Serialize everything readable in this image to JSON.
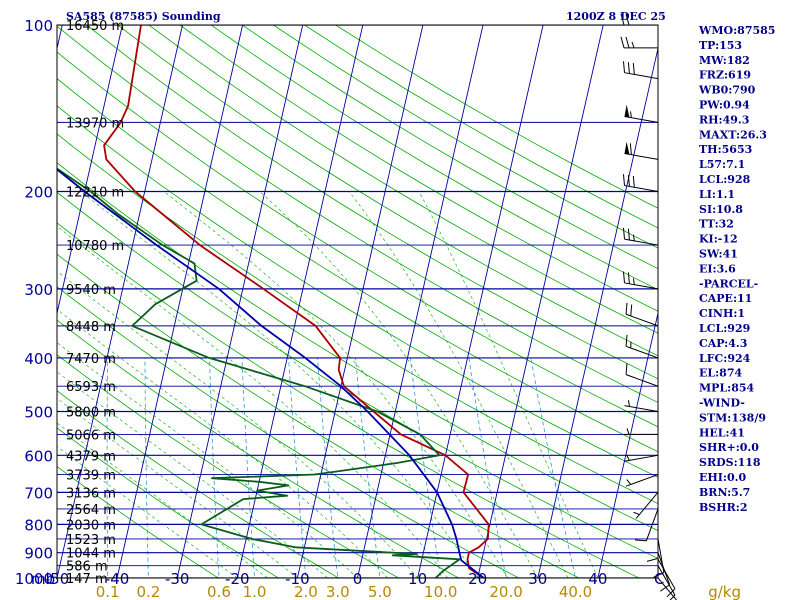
{
  "header": {
    "station_title": "SA585 (87585) Sounding",
    "time_label": "1200Z  8 DEC 25"
  },
  "units": {
    "pressure": "mb",
    "mixing_ratio": "g/kg"
  },
  "chart_data": {
    "type": "line",
    "subtype": "skew-T log-P",
    "pressure_axis": {
      "ticks": [
        100,
        200,
        300,
        400,
        500,
        600,
        700,
        800,
        900,
        1000
      ],
      "scale": "log",
      "ylim": [
        1000,
        100
      ]
    },
    "temperature_axis": {
      "ticks": [
        -50,
        -40,
        -30,
        -20,
        -10,
        0,
        10,
        20,
        30,
        40
      ],
      "labels": [
        "-50",
        "-40",
        "-30",
        "-20",
        "-10",
        "0",
        "10",
        "20",
        "30",
        "40"
      ],
      "trailing_label": "C",
      "xlim": [
        -50,
        50
      ]
    },
    "mixing_ratio_labels": [
      "0.1",
      "0.2",
      "0.6",
      "1.0",
      "2.0",
      "3.0",
      "5.0",
      "10.0",
      "20.0",
      "40.0"
    ],
    "mixing_ratio_values": [
      0.1,
      0.2,
      0.6,
      1.0,
      2.0,
      3.0,
      5.0,
      10.0,
      20.0,
      40.0
    ],
    "height_labels": [
      {
        "p": 100,
        "label": "16450 m"
      },
      {
        "p": 150,
        "label": "13970 m"
      },
      {
        "p": 200,
        "label": "12210 m"
      },
      {
        "p": 250,
        "label": "10780 m"
      },
      {
        "p": 300,
        "label": "9540 m"
      },
      {
        "p": 350,
        "label": "8448 m"
      },
      {
        "p": 400,
        "label": "7470 m"
      },
      {
        "p": 450,
        "label": "6593 m"
      },
      {
        "p": 500,
        "label": "5800 m"
      },
      {
        "p": 550,
        "label": "5066 m"
      },
      {
        "p": 600,
        "label": "4379 m"
      },
      {
        "p": 650,
        "label": "3739 m"
      },
      {
        "p": 700,
        "label": "3136 m"
      },
      {
        "p": 750,
        "label": "2564 m"
      },
      {
        "p": 800,
        "label": "2030 m"
      },
      {
        "p": 850,
        "label": "1523 m"
      },
      {
        "p": 900,
        "label": "1044 m"
      },
      {
        "p": 950,
        "label": "586 m"
      },
      {
        "p": 1000,
        "label": "147 m"
      }
    ],
    "series": [
      {
        "color": "#aa0000",
        "points": [
          [
            1000,
            21.0
          ],
          [
            960,
            18.2
          ],
          [
            925,
            17.6
          ],
          [
            900,
            17.6
          ],
          [
            880,
            19.0
          ],
          [
            850,
            20.2
          ],
          [
            800,
            19.8
          ],
          [
            700,
            14.4
          ],
          [
            650,
            14.5
          ],
          [
            600,
            10.0
          ],
          [
            550,
            1.8
          ],
          [
            500,
            -3.6
          ],
          [
            450,
            -9.5
          ],
          [
            420,
            -11.0
          ],
          [
            400,
            -11.2
          ],
          [
            350,
            -16.5
          ],
          [
            300,
            -26.6
          ],
          [
            250,
            -38.8
          ],
          [
            200,
            -51.6
          ],
          [
            175,
            -57.6
          ],
          [
            165,
            -58.5
          ],
          [
            150,
            -56.6
          ],
          [
            140,
            -56.0
          ],
          [
            100,
            -56.9
          ]
        ]
      },
      {
        "color": "#0b5d1e",
        "points": [
          [
            1000,
            13.0
          ],
          [
            970,
            14.0
          ],
          [
            925,
            16.3
          ],
          [
            910,
            5.0
          ],
          [
            905,
            9.0
          ],
          [
            880,
            -11.5
          ],
          [
            850,
            -19.0
          ],
          [
            800,
            -28.0
          ],
          [
            720,
            -22.0
          ],
          [
            710,
            -14.8
          ],
          [
            695,
            -20.0
          ],
          [
            680,
            -15.0
          ],
          [
            670,
            -20.0
          ],
          [
            660,
            -28.0
          ],
          [
            650,
            -11.0
          ],
          [
            620,
            2.0
          ],
          [
            600,
            9.0
          ],
          [
            550,
            5.0
          ],
          [
            500,
            -3.0
          ],
          [
            450,
            -16.0
          ],
          [
            400,
            -33.0
          ],
          [
            350,
            -47.0
          ],
          [
            320,
            -44.0
          ],
          [
            290,
            -38.0
          ],
          [
            270,
            -39.0
          ],
          [
            250,
            -45.0
          ],
          [
            220,
            -53.5
          ],
          [
            200,
            -59.0
          ],
          [
            170,
            -70.0
          ],
          [
            160,
            -72.0
          ],
          [
            150,
            -73.5
          ],
          [
            140,
            -74.0
          ],
          [
            130,
            -82.0
          ],
          [
            110,
            -87.0
          ],
          [
            100,
            -88.0
          ]
        ]
      },
      {
        "color": "#0000aa",
        "points": [
          [
            1000,
            21.0
          ],
          [
            929,
            16.6
          ],
          [
            900,
            16.0
          ],
          [
            850,
            15.0
          ],
          [
            800,
            13.7
          ],
          [
            700,
            10.0
          ],
          [
            600,
            4.0
          ],
          [
            500,
            -4.6
          ],
          [
            450,
            -10.0
          ],
          [
            400,
            -17.0
          ],
          [
            350,
            -25.5
          ],
          [
            300,
            -34.0
          ],
          [
            250,
            -46.0
          ],
          [
            200,
            -60.0
          ],
          [
            150,
            -77.0
          ],
          [
            120,
            -86.0
          ]
        ]
      }
    ],
    "wind_barbs": [
      {
        "p": 1000,
        "dir": 140,
        "spd": 5
      },
      {
        "p": 950,
        "dir": 150,
        "spd": 10
      },
      {
        "p": 925,
        "dir": 150,
        "spd": 10
      },
      {
        "p": 900,
        "dir": 160,
        "spd": 10
      },
      {
        "p": 850,
        "dir": 170,
        "spd": 10
      },
      {
        "p": 800,
        "dir": 180,
        "spd": 10
      },
      {
        "p": 750,
        "dir": 200,
        "spd": 10
      },
      {
        "p": 700,
        "dir": 220,
        "spd": 5
      },
      {
        "p": 650,
        "dir": 250,
        "spd": 5
      },
      {
        "p": 600,
        "dir": 260,
        "spd": 5
      },
      {
        "p": 550,
        "dir": 270,
        "spd": 5
      },
      {
        "p": 500,
        "dir": 280,
        "spd": 5
      },
      {
        "p": 450,
        "dir": 290,
        "spd": 10
      },
      {
        "p": 400,
        "dir": 290,
        "spd": 15
      },
      {
        "p": 350,
        "dir": 290,
        "spd": 20
      },
      {
        "p": 300,
        "dir": 280,
        "spd": 25
      },
      {
        "p": 250,
        "dir": 280,
        "spd": 25
      },
      {
        "p": 200,
        "dir": 280,
        "spd": 30
      },
      {
        "p": 175,
        "dir": 280,
        "spd": 60
      },
      {
        "p": 150,
        "dir": 280,
        "spd": 55
      },
      {
        "p": 125,
        "dir": 280,
        "spd": 30
      },
      {
        "p": 110,
        "dir": 270,
        "spd": 25
      },
      {
        "p": 100,
        "dir": 270,
        "spd": 20
      }
    ]
  },
  "indices": [
    "WMO:87585",
    "TP:153",
    "MW:182",
    "FRZ:619",
    "WB0:790",
    "PW:0.94",
    "RH:49.3",
    "MAXT:26.3",
    "TH:5653",
    "L57:7.1",
    "LCL:928",
    "LI:1.1",
    "SI:10.8",
    "TT:32",
    "KI:-12",
    "SW:41",
    "EI:3.6",
    "-PARCEL-",
    "CAPE:11",
    "CINH:1",
    "LCL:929",
    "CAP:4.3",
    "LFC:924",
    "EL:874",
    "MPL:854",
    "-WIND-",
    "STM:138/9",
    "HEL:41",
    "SHR+:0.0",
    "SRDS:118",
    "EHI:0.0",
    "BRN:5.7",
    "BSHR:2"
  ],
  "colors": {
    "frame": "#000000",
    "isobar": "#0000a0",
    "isotherm": "#0000a0",
    "dry_adiabat": "#00aa00",
    "moist_adiabat": "#00aa00",
    "mixing_line": "#3399cc",
    "wind_barb": "#000000",
    "background": "#ffffff"
  }
}
